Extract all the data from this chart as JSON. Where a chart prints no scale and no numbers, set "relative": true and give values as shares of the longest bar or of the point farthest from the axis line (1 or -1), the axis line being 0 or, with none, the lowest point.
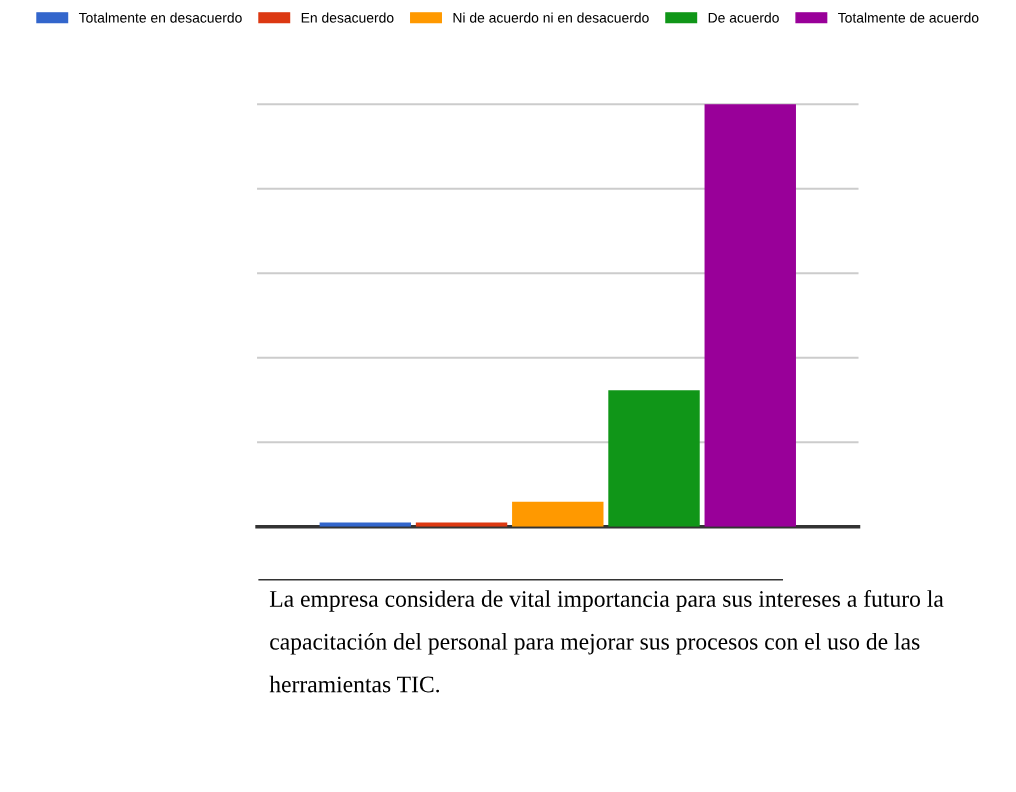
{
  "chart_data": {
    "type": "bar",
    "relative": true,
    "categories": [
      null
    ],
    "series": [
      {
        "name": "Totalmente en desacuerdo",
        "color": "#3366cc",
        "values": [
          0.01
        ]
      },
      {
        "name": "En desacuerdo",
        "color": "#dc3912",
        "values": [
          0.01
        ]
      },
      {
        "name": "Ni de acuerdo ni en desacuerdo",
        "color": "#ff9900",
        "values": [
          0.059
        ]
      },
      {
        "name": "De acuerdo",
        "color": "#109618",
        "values": [
          0.323
        ]
      },
      {
        "name": "Totalmente de acuerdo",
        "color": "#990099",
        "values": [
          1
        ]
      }
    ],
    "grid": "y",
    "legend": "top",
    "annotations": [
      "La empresa considera de vital importancia para sus intereses a futuro la capacitación del personal para mejorar sus procesos con el uso de las herramientas TIC."
    ]
  }
}
